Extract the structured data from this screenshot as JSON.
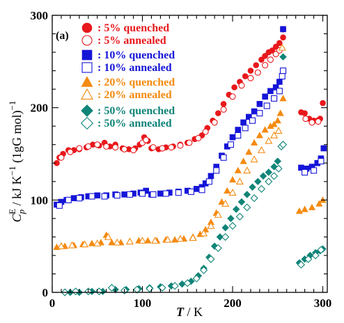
{
  "chart_data": {
    "type": "scatter",
    "panel_label": "(a)",
    "xlabel": "T / K",
    "ylabel": "C_p^E / kJ K^-1 (1gG mol)^-1",
    "xlim": [
      0,
      305
    ],
    "ylim": [
      0,
      300
    ],
    "xticks": [
      "0",
      "100",
      "200",
      "300"
    ],
    "yticks": [
      "0",
      "100",
      "200",
      "300"
    ],
    "grid": false,
    "legend_position": "top-left",
    "colors": {
      "red": "#e8181c",
      "blue": "#1515d8",
      "orange": "#f48a10",
      "teal": "#108478"
    },
    "series": [
      {
        "name": "5% quenched",
        "label": ": 5% quenched",
        "color": "#e8181c",
        "marker": "circle",
        "filled": true,
        "points": [
          [
            5,
            140
          ],
          [
            8,
            146
          ],
          [
            12,
            150
          ],
          [
            18,
            154
          ],
          [
            24,
            154
          ],
          [
            30,
            155
          ],
          [
            38,
            157
          ],
          [
            45,
            160
          ],
          [
            52,
            159
          ],
          [
            58,
            162
          ],
          [
            64,
            158
          ],
          [
            70,
            160
          ],
          [
            78,
            156
          ],
          [
            85,
            155
          ],
          [
            92,
            156
          ],
          [
            97,
            160
          ],
          [
            102,
            168
          ],
          [
            106,
            164
          ],
          [
            110,
            156
          ],
          [
            118,
            155
          ],
          [
            126,
            157
          ],
          [
            134,
            158
          ],
          [
            142,
            160
          ],
          [
            150,
            162
          ],
          [
            158,
            166
          ],
          [
            166,
            170
          ],
          [
            172,
            178
          ],
          [
            178,
            186
          ],
          [
            184,
            194
          ],
          [
            190,
            204
          ],
          [
            196,
            214
          ],
          [
            202,
            222
          ],
          [
            208,
            228
          ],
          [
            214,
            234
          ],
          [
            220,
            240
          ],
          [
            226,
            246
          ],
          [
            232,
            252
          ],
          [
            236,
            256
          ],
          [
            240,
            260
          ],
          [
            244,
            262
          ],
          [
            248,
            266
          ],
          [
            252,
            270
          ],
          [
            256,
            276
          ],
          [
            276,
            195
          ],
          [
            280,
            194
          ],
          [
            285,
            188
          ],
          [
            290,
            186
          ],
          [
            294,
            186
          ],
          [
            297,
            188
          ],
          [
            300,
            205
          ]
        ]
      },
      {
        "name": "5% annealed",
        "label": ": 5% annealed",
        "color": "#e8181c",
        "marker": "circle",
        "filled": false,
        "points": [
          [
            10,
            146
          ],
          [
            20,
            152
          ],
          [
            30,
            156
          ],
          [
            40,
            158
          ],
          [
            50,
            160
          ],
          [
            60,
            158
          ],
          [
            70,
            157
          ],
          [
            80,
            155
          ],
          [
            90,
            154
          ],
          [
            100,
            162
          ],
          [
            104,
            165
          ],
          [
            112,
            157
          ],
          [
            122,
            156
          ],
          [
            132,
            157
          ],
          [
            142,
            159
          ],
          [
            152,
            162
          ],
          [
            162,
            167
          ],
          [
            170,
            174
          ],
          [
            180,
            184
          ],
          [
            190,
            198
          ],
          [
            200,
            212
          ],
          [
            210,
            224
          ],
          [
            220,
            232
          ],
          [
            228,
            238
          ],
          [
            236,
            246
          ],
          [
            242,
            252
          ],
          [
            248,
            258
          ],
          [
            252,
            262
          ],
          [
            256,
            285
          ],
          [
            281,
            188
          ],
          [
            288,
            184
          ],
          [
            295,
            185
          ]
        ]
      },
      {
        "name": "10% quenched",
        "label": ": 10% quenched",
        "color": "#1515d8",
        "marker": "square",
        "filled": true,
        "points": [
          [
            5,
            95
          ],
          [
            10,
            98
          ],
          [
            16,
            100
          ],
          [
            24,
            102
          ],
          [
            32,
            103
          ],
          [
            40,
            104
          ],
          [
            50,
            105
          ],
          [
            60,
            105
          ],
          [
            70,
            106
          ],
          [
            80,
            106
          ],
          [
            90,
            107
          ],
          [
            98,
            108
          ],
          [
            104,
            110
          ],
          [
            110,
            106
          ],
          [
            120,
            107
          ],
          [
            130,
            108
          ],
          [
            140,
            109
          ],
          [
            150,
            110
          ],
          [
            160,
            112
          ],
          [
            166,
            114
          ],
          [
            170,
            118
          ],
          [
            176,
            126
          ],
          [
            182,
            136
          ],
          [
            188,
            148
          ],
          [
            194,
            158
          ],
          [
            200,
            168
          ],
          [
            206,
            176
          ],
          [
            212,
            184
          ],
          [
            218,
            190
          ],
          [
            224,
            196
          ],
          [
            230,
            204
          ],
          [
            236,
            212
          ],
          [
            242,
            218
          ],
          [
            248,
            222
          ],
          [
            252,
            228
          ],
          [
            256,
            285
          ],
          [
            276,
            135
          ],
          [
            282,
            134
          ],
          [
            288,
            136
          ],
          [
            294,
            140
          ],
          [
            298,
            145
          ],
          [
            301,
            156
          ]
        ]
      },
      {
        "name": "10% annealed",
        "label": ": 10% annealed",
        "color": "#1515d8",
        "marker": "square",
        "filled": false,
        "points": [
          [
            8,
            94
          ],
          [
            18,
            100
          ],
          [
            30,
            102
          ],
          [
            44,
            104
          ],
          [
            58,
            104
          ],
          [
            72,
            105
          ],
          [
            86,
            106
          ],
          [
            100,
            107
          ],
          [
            112,
            106
          ],
          [
            126,
            107
          ],
          [
            140,
            108
          ],
          [
            154,
            109
          ],
          [
            166,
            111
          ],
          [
            174,
            120
          ],
          [
            182,
            132
          ],
          [
            190,
            146
          ],
          [
            198,
            160
          ],
          [
            206,
            170
          ],
          [
            214,
            178
          ],
          [
            222,
            186
          ],
          [
            230,
            194
          ],
          [
            238,
            202
          ],
          [
            246,
            210
          ],
          [
            252,
            218
          ],
          [
            255,
            234
          ],
          [
            256,
            240
          ],
          [
            280,
            130
          ],
          [
            290,
            132
          ],
          [
            298,
            142
          ]
        ]
      },
      {
        "name": "20% quenched",
        "label": ": 20% quenched",
        "color": "#f48a10",
        "marker": "triangle",
        "filled": true,
        "points": [
          [
            5,
            49
          ],
          [
            14,
            50
          ],
          [
            24,
            51
          ],
          [
            34,
            52
          ],
          [
            44,
            53
          ],
          [
            54,
            54
          ],
          [
            60,
            62
          ],
          [
            66,
            54
          ],
          [
            76,
            54
          ],
          [
            86,
            55
          ],
          [
            96,
            56
          ],
          [
            106,
            56
          ],
          [
            116,
            56
          ],
          [
            126,
            57
          ],
          [
            136,
            57
          ],
          [
            146,
            58
          ],
          [
            156,
            60
          ],
          [
            164,
            63
          ],
          [
            170,
            68
          ],
          [
            176,
            76
          ],
          [
            182,
            86
          ],
          [
            188,
            98
          ],
          [
            194,
            110
          ],
          [
            200,
            122
          ],
          [
            206,
            132
          ],
          [
            212,
            142
          ],
          [
            218,
            152
          ],
          [
            224,
            162
          ],
          [
            230,
            170
          ],
          [
            236,
            176
          ],
          [
            242,
            180
          ],
          [
            246,
            182
          ],
          [
            250,
            186
          ],
          [
            253,
            194
          ],
          [
            256,
            210
          ],
          [
            274,
            88
          ],
          [
            280,
            90
          ],
          [
            288,
            92
          ],
          [
            296,
            96
          ],
          [
            300,
            100
          ]
        ]
      },
      {
        "name": "20% annealed",
        "label": ": 20% annealed",
        "color": "#f48a10",
        "marker": "triangle",
        "filled": false,
        "points": [
          [
            10,
            50
          ],
          [
            22,
            51
          ],
          [
            36,
            52
          ],
          [
            50,
            53
          ],
          [
            62,
            60
          ],
          [
            72,
            54
          ],
          [
            86,
            55
          ],
          [
            100,
            56
          ],
          [
            114,
            56
          ],
          [
            128,
            57
          ],
          [
            142,
            58
          ],
          [
            156,
            59
          ],
          [
            168,
            64
          ],
          [
            176,
            72
          ],
          [
            184,
            84
          ],
          [
            192,
            96
          ],
          [
            200,
            108
          ],
          [
            208,
            120
          ],
          [
            216,
            132
          ],
          [
            224,
            144
          ],
          [
            232,
            154
          ],
          [
            240,
            164
          ],
          [
            246,
            170
          ],
          [
            251,
            175
          ],
          [
            255,
            265
          ]
        ]
      },
      {
        "name": "50% quenched",
        "label": ": 50% quenched",
        "color": "#108478",
        "marker": "diamond",
        "filled": true,
        "points": [
          [
            20,
            0
          ],
          [
            30,
            0
          ],
          [
            44,
            1
          ],
          [
            56,
            1
          ],
          [
            70,
            3
          ],
          [
            82,
            3
          ],
          [
            96,
            4
          ],
          [
            108,
            5
          ],
          [
            120,
            6
          ],
          [
            132,
            7
          ],
          [
            144,
            9
          ],
          [
            154,
            12
          ],
          [
            162,
            18
          ],
          [
            168,
            26
          ],
          [
            174,
            38
          ],
          [
            180,
            50
          ],
          [
            186,
            60
          ],
          [
            192,
            70
          ],
          [
            198,
            80
          ],
          [
            204,
            90
          ],
          [
            210,
            98
          ],
          [
            216,
            106
          ],
          [
            222,
            114
          ],
          [
            228,
            120
          ],
          [
            234,
            126
          ],
          [
            240,
            130
          ],
          [
            246,
            136
          ],
          [
            250,
            142
          ],
          [
            256,
            255
          ],
          [
            274,
            32
          ],
          [
            280,
            36
          ],
          [
            286,
            40
          ],
          [
            292,
            43
          ],
          [
            297,
            45
          ],
          [
            300,
            47
          ]
        ]
      },
      {
        "name": "50% annealed",
        "label": ": 50% annealed",
        "color": "#108478",
        "marker": "diamond",
        "filled": false,
        "points": [
          [
            14,
            0
          ],
          [
            26,
            1
          ],
          [
            40,
            1
          ],
          [
            52,
            1
          ],
          [
            66,
            5
          ],
          [
            80,
            2
          ],
          [
            94,
            3
          ],
          [
            108,
            4
          ],
          [
            122,
            5
          ],
          [
            136,
            7
          ],
          [
            150,
            10
          ],
          [
            160,
            15
          ],
          [
            168,
            24
          ],
          [
            176,
            36
          ],
          [
            184,
            48
          ],
          [
            192,
            60
          ],
          [
            200,
            72
          ],
          [
            208,
            82
          ],
          [
            216,
            92
          ],
          [
            224,
            102
          ],
          [
            232,
            112
          ],
          [
            240,
            120
          ],
          [
            246,
            126
          ],
          [
            251,
            134
          ],
          [
            254,
            158
          ],
          [
            256,
            160
          ],
          [
            276,
            30
          ],
          [
            284,
            36
          ],
          [
            292,
            40
          ],
          [
            298,
            46
          ]
        ]
      }
    ]
  }
}
